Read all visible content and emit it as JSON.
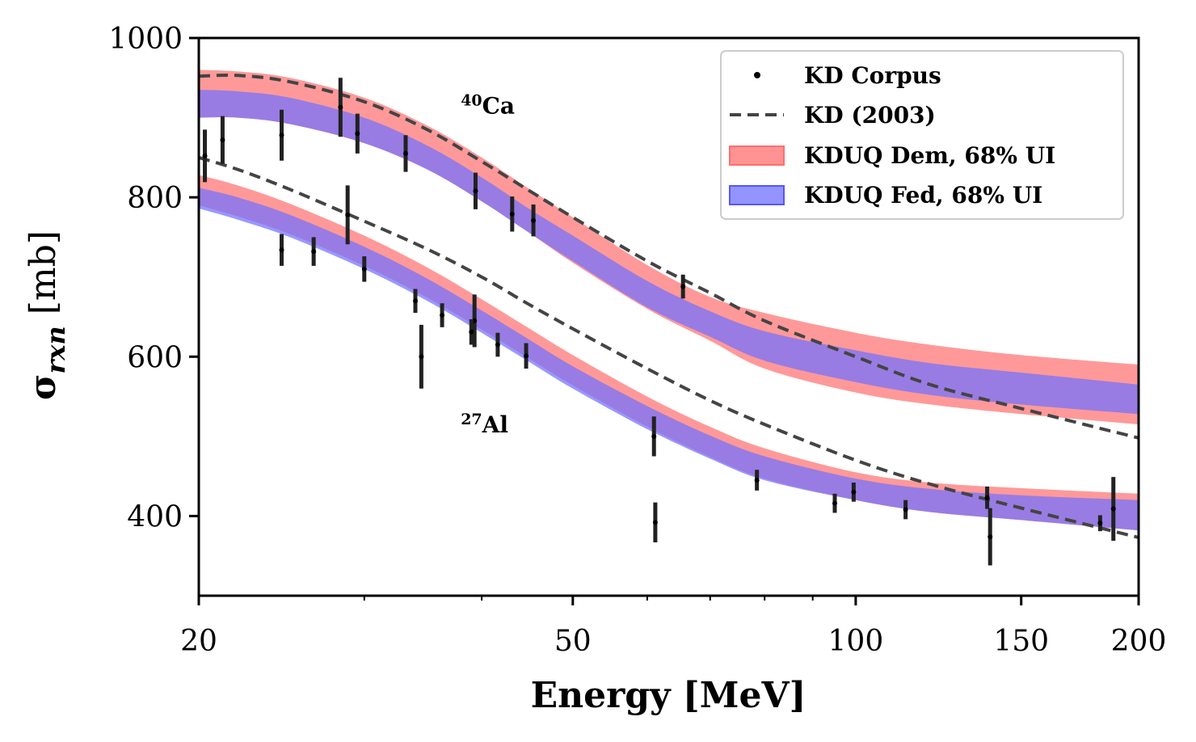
{
  "chart_data": {
    "type": "line",
    "xscale": "log",
    "xlim": [
      20,
      200
    ],
    "ylim": [
      300,
      1000
    ],
    "xlabel": "Energy [MeV]",
    "ylabel": "σ",
    "ylabel_sub": "rxn",
    "ylabel_unit": " [mb]",
    "xticks": [
      {
        "value": 20,
        "label": "20"
      },
      {
        "value": 50,
        "label": "50"
      },
      {
        "value": 100,
        "label": "100"
      },
      {
        "value": 150,
        "label": "150"
      },
      {
        "value": 200,
        "label": "200"
      }
    ],
    "yticks": [
      {
        "value": 400,
        "label": "400"
      },
      {
        "value": 600,
        "label": "600"
      },
      {
        "value": 800,
        "label": "800"
      },
      {
        "value": 1000,
        "label": "1000"
      }
    ],
    "legend_position": "top-right",
    "legend": [
      {
        "name": "KD Corpus",
        "kind": "point",
        "color": "#000000"
      },
      {
        "name": "KD (2003)",
        "kind": "dashed",
        "color": "#444444"
      },
      {
        "name": "KDUQ Dem, 68% UI",
        "kind": "band",
        "color": "#ff6e6e"
      },
      {
        "name": "KDUQ Fed, 68% UI",
        "kind": "band",
        "color": "#7070ff"
      }
    ],
    "annotations": [
      {
        "mass": "40",
        "element": "Ca",
        "x": 38,
        "y": 905
      },
      {
        "mass": "27",
        "element": "Al",
        "x": 38,
        "y": 505
      }
    ],
    "targets": [
      {
        "name": "40Ca",
        "kd2003": {
          "x": [
            20,
            22,
            25,
            30,
            35,
            40,
            45,
            50,
            60,
            70,
            80,
            100,
            120,
            150,
            200
          ],
          "y": [
            952,
            953,
            945,
            920,
            885,
            845,
            808,
            775,
            720,
            680,
            645,
            600,
            565,
            535,
            498
          ]
        },
        "dem": {
          "x": [
            20,
            22,
            25,
            30,
            35,
            40,
            45,
            50,
            60,
            70,
            80,
            100,
            120,
            150,
            200
          ],
          "upper": [
            960,
            958,
            950,
            925,
            890,
            850,
            810,
            775,
            715,
            675,
            655,
            630,
            615,
            602,
            590
          ],
          "lower": [
            900,
            900,
            892,
            868,
            835,
            795,
            755,
            718,
            660,
            620,
            585,
            555,
            540,
            528,
            515
          ]
        },
        "fed": {
          "x": [
            20,
            22,
            25,
            30,
            35,
            40,
            45,
            50,
            60,
            70,
            80,
            100,
            120,
            150,
            200
          ],
          "upper": [
            935,
            933,
            925,
            900,
            865,
            825,
            785,
            752,
            695,
            657,
            632,
            608,
            592,
            580,
            565
          ],
          "lower": [
            900,
            900,
            892,
            868,
            835,
            795,
            755,
            720,
            662,
            625,
            595,
            568,
            552,
            540,
            528
          ]
        },
        "points": [
          {
            "x": 20.3,
            "y": 852,
            "err": 33
          },
          {
            "x": 21.2,
            "y": 872,
            "err": 30
          },
          {
            "x": 24.5,
            "y": 878,
            "err": 32
          },
          {
            "x": 28.3,
            "y": 913,
            "err": 37
          },
          {
            "x": 29.5,
            "y": 880,
            "err": 25
          },
          {
            "x": 33.2,
            "y": 855,
            "err": 23
          },
          {
            "x": 39.4,
            "y": 808,
            "err": 23
          },
          {
            "x": 43.1,
            "y": 779,
            "err": 22
          },
          {
            "x": 45.4,
            "y": 771,
            "err": 20
          },
          {
            "x": 65.5,
            "y": 688,
            "err": 15
          }
        ]
      },
      {
        "name": "27Al",
        "kd2003": {
          "x": [
            20,
            22,
            25,
            30,
            35,
            40,
            45,
            50,
            60,
            70,
            80,
            100,
            120,
            150,
            200
          ],
          "y": [
            850,
            835,
            810,
            770,
            735,
            700,
            665,
            635,
            585,
            545,
            515,
            470,
            440,
            410,
            373
          ]
        },
        "dem": {
          "x": [
            20,
            22,
            25,
            30,
            35,
            40,
            45,
            50,
            60,
            70,
            80,
            100,
            120,
            150,
            200
          ],
          "upper": [
            828,
            815,
            792,
            752,
            712,
            672,
            635,
            602,
            550,
            512,
            485,
            455,
            442,
            435,
            428
          ],
          "lower": [
            790,
            776,
            754,
            714,
            674,
            634,
            597,
            564,
            512,
            474,
            447,
            420,
            405,
            395,
            382
          ]
        },
        "fed": {
          "x": [
            20,
            22,
            25,
            30,
            35,
            40,
            45,
            50,
            60,
            70,
            80,
            100,
            120,
            150,
            200
          ],
          "upper": [
            812,
            800,
            778,
            738,
            698,
            658,
            621,
            588,
            538,
            501,
            475,
            447,
            434,
            426,
            420
          ],
          "lower": [
            786,
            772,
            750,
            710,
            670,
            630,
            593,
            560,
            509,
            472,
            445,
            420,
            405,
            395,
            382
          ]
        },
        "points": [
          {
            "x": 24.5,
            "y": 734,
            "err": 20
          },
          {
            "x": 26.5,
            "y": 732,
            "err": 18
          },
          {
            "x": 28.8,
            "y": 778,
            "err": 37
          },
          {
            "x": 30.0,
            "y": 710,
            "err": 16
          },
          {
            "x": 34.0,
            "y": 670,
            "err": 15
          },
          {
            "x": 34.5,
            "y": 600,
            "err": 40
          },
          {
            "x": 36.3,
            "y": 652,
            "err": 15
          },
          {
            "x": 39.3,
            "y": 645,
            "err": 33
          },
          {
            "x": 39.0,
            "y": 631,
            "err": 16
          },
          {
            "x": 41.6,
            "y": 615,
            "err": 15
          },
          {
            "x": 44.6,
            "y": 601,
            "err": 16
          },
          {
            "x": 61.0,
            "y": 500,
            "err": 25
          },
          {
            "x": 61.2,
            "y": 392,
            "err": 25
          },
          {
            "x": 78.5,
            "y": 445,
            "err": 13
          },
          {
            "x": 95.0,
            "y": 416,
            "err": 12
          },
          {
            "x": 99.5,
            "y": 430,
            "err": 12
          },
          {
            "x": 113.0,
            "y": 408,
            "err": 12
          },
          {
            "x": 138.0,
            "y": 423,
            "err": 14
          },
          {
            "x": 139.0,
            "y": 374,
            "err": 36
          },
          {
            "x": 182.0,
            "y": 391,
            "err": 10
          },
          {
            "x": 188.0,
            "y": 409,
            "err": 40
          }
        ]
      }
    ]
  }
}
